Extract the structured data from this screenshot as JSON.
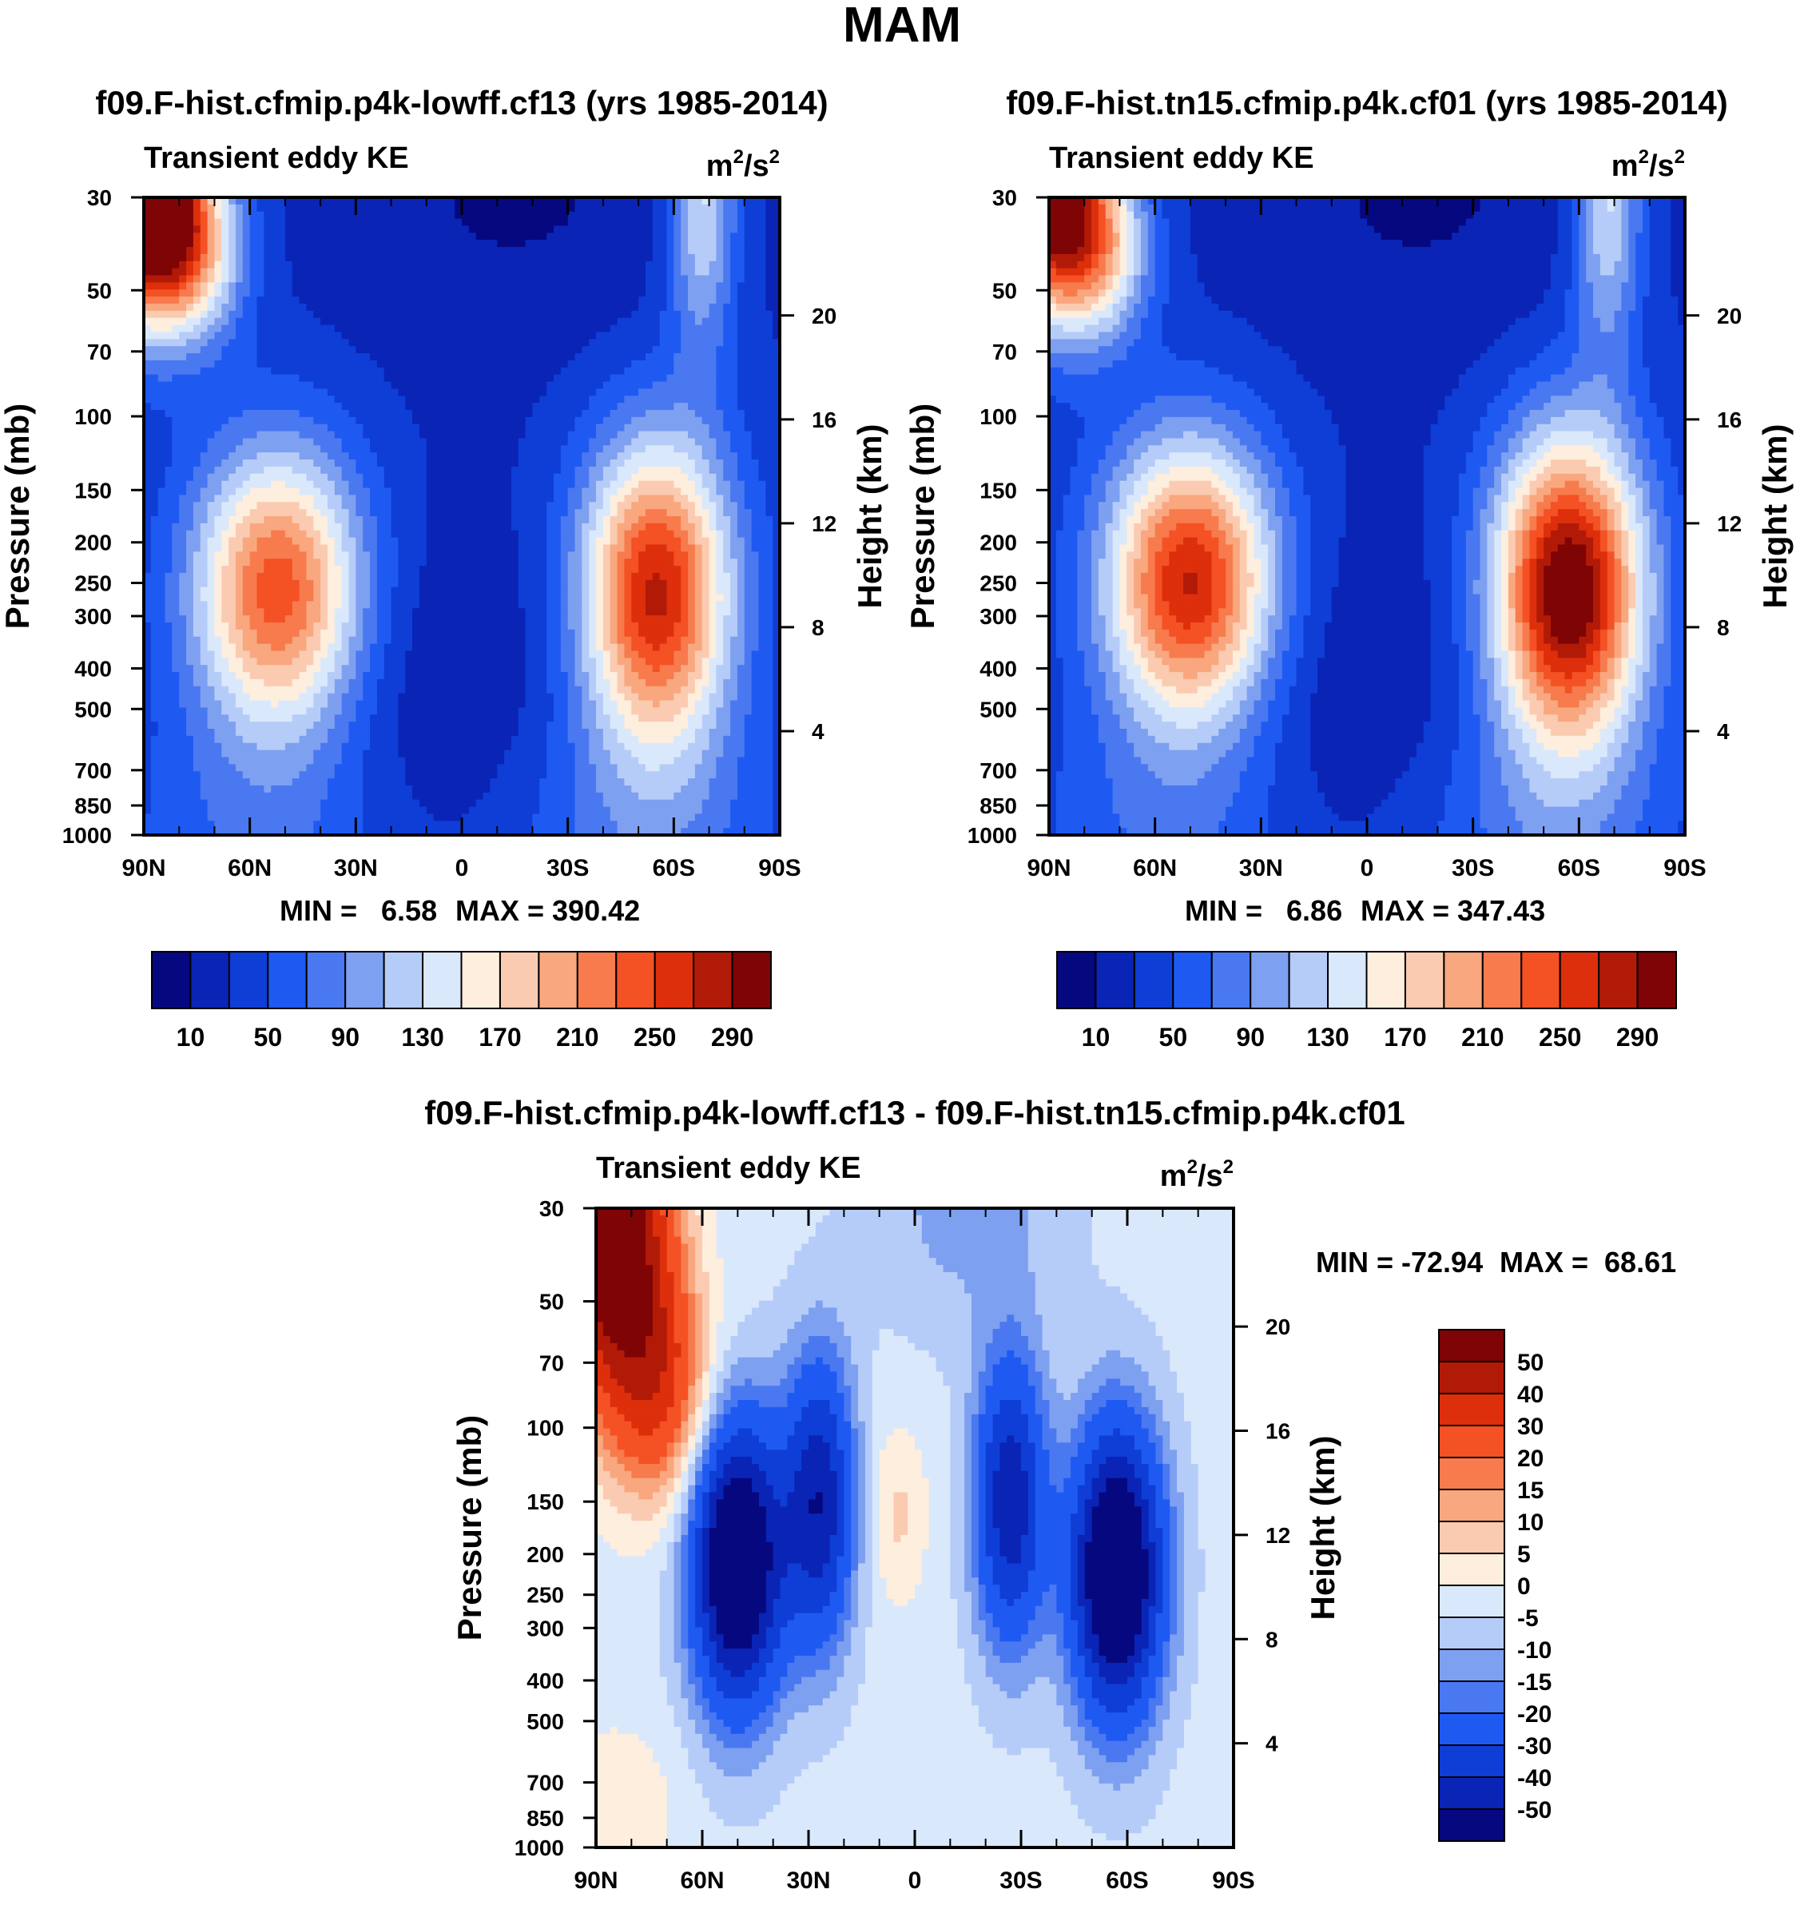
{
  "figure": {
    "season": "MAM"
  },
  "colors": {
    "abs_palette": [
      "#06087f",
      "#0a24b6",
      "#0e3ed6",
      "#1e5af2",
      "#4a78f0",
      "#7ea0f0",
      "#b6ccf8",
      "#dae8fc",
      "#fdeede",
      "#fbcbb1",
      "#f9a77f",
      "#f77b4d",
      "#f45124",
      "#dd2f0b",
      "#b21a08",
      "#7f0406"
    ],
    "diff_palette": [
      "#06087f",
      "#0a24b6",
      "#0e3ed6",
      "#1e5af2",
      "#4a78f0",
      "#7ea0f0",
      "#b6ccf8",
      "#dae8fc",
      "#fdeede",
      "#fbcbb1",
      "#f9a77f",
      "#f77b4d",
      "#f45124",
      "#dd2f0b",
      "#b21a08",
      "#7f0406"
    ]
  },
  "chart_data": [
    {
      "id": "panel1",
      "type": "heatmap",
      "title": "f09.F-hist.cfmip.p4k-lowff.cf13 (yrs 1985-2014)",
      "left_label": "Transient eddy KE",
      "units": {
        "base": "m",
        "exp1": "2",
        "slash": "/s",
        "exp2": "2"
      },
      "ylabel": "Pressure (mb)",
      "y2label": "Height (km)",
      "x_ticks": [
        "90N",
        "60N",
        "30N",
        "0",
        "30S",
        "60S",
        "90S"
      ],
      "x_tick_values": [
        90,
        60,
        30,
        0,
        -30,
        -60,
        -90
      ],
      "xlim": [
        90,
        -90
      ],
      "y_scale": "log",
      "ylim": [
        1000,
        30
      ],
      "y_ticks": [
        30,
        50,
        70,
        100,
        150,
        200,
        250,
        300,
        400,
        500,
        700,
        850,
        1000
      ],
      "y2_ticks": [
        20,
        16,
        12,
        8,
        4
      ],
      "min_label": "MIN =   6.58",
      "max_label": "MAX = 390.42",
      "min": 6.58,
      "max": 390.42,
      "colorbar_labels": [
        "10",
        "50",
        "90",
        "130",
        "170",
        "210",
        "250",
        "290"
      ],
      "levels": [
        10,
        30,
        50,
        70,
        90,
        110,
        130,
        150,
        170,
        190,
        210,
        230,
        250,
        270,
        290
      ],
      "features": [
        {
          "lat": 52,
          "p": 260,
          "peak": 245
        },
        {
          "lat": -55,
          "p": 265,
          "peak": 275
        },
        {
          "lat": 88,
          "p": 30,
          "peak": 380
        }
      ]
    },
    {
      "id": "panel2",
      "type": "heatmap",
      "title": "f09.F-hist.tn15.cfmip.p4k.cf01 (yrs 1985-2014)",
      "left_label": "Transient eddy KE",
      "units": {
        "base": "m",
        "exp1": "2",
        "slash": "/s",
        "exp2": "2"
      },
      "ylabel": "Pressure (mb)",
      "y2label": "Height (km)",
      "x_ticks": [
        "90N",
        "60N",
        "30N",
        "0",
        "30S",
        "60S",
        "90S"
      ],
      "x_tick_values": [
        90,
        60,
        30,
        0,
        -30,
        -60,
        -90
      ],
      "xlim": [
        90,
        -90
      ],
      "y_scale": "log",
      "ylim": [
        1000,
        30
      ],
      "y_ticks": [
        30,
        50,
        70,
        100,
        150,
        200,
        250,
        300,
        400,
        500,
        700,
        850,
        1000
      ],
      "y2_ticks": [
        20,
        16,
        12,
        8,
        4
      ],
      "min_label": "MIN =   6.86",
      "max_label": "MAX = 347.43",
      "min": 6.86,
      "max": 347.43,
      "colorbar_labels": [
        "10",
        "50",
        "90",
        "130",
        "170",
        "210",
        "250",
        "290"
      ],
      "levels": [
        10,
        30,
        50,
        70,
        90,
        110,
        130,
        150,
        170,
        190,
        210,
        230,
        250,
        270,
        290
      ],
      "features": [
        {
          "lat": 50,
          "p": 250,
          "peak": 275
        },
        {
          "lat": -57,
          "p": 260,
          "peak": 320
        },
        {
          "lat": 88,
          "p": 30,
          "peak": 300
        }
      ]
    },
    {
      "id": "panel3",
      "type": "heatmap",
      "title": "f09.F-hist.cfmip.p4k-lowff.cf13 - f09.F-hist.tn15.cfmip.p4k.cf01",
      "left_label": "Transient eddy KE",
      "units": {
        "base": "m",
        "exp1": "2",
        "slash": "/s",
        "exp2": "2"
      },
      "ylabel": "Pressure (mb)",
      "y2label": "Height (km)",
      "x_ticks": [
        "90N",
        "60N",
        "30N",
        "0",
        "30S",
        "60S",
        "90S"
      ],
      "x_tick_values": [
        90,
        60,
        30,
        0,
        -30,
        -60,
        -90
      ],
      "xlim": [
        90,
        -90
      ],
      "y_scale": "log",
      "ylim": [
        1000,
        30
      ],
      "y_ticks": [
        30,
        50,
        70,
        100,
        150,
        200,
        250,
        300,
        400,
        500,
        700,
        850,
        1000
      ],
      "y2_ticks": [
        20,
        16,
        12,
        8,
        4
      ],
      "min_label": "MIN = -72.94",
      "max_label": "MAX =  68.61",
      "min": -72.94,
      "max": 68.61,
      "colorbar_labels": [
        "50",
        "40",
        "30",
        "20",
        "15",
        "10",
        "5",
        "0",
        "-5",
        "-10",
        "-15",
        "-20",
        "-30",
        "-40",
        "-50"
      ],
      "levels": [
        -50,
        -40,
        -30,
        -20,
        -15,
        -10,
        -5,
        0,
        5,
        10,
        15,
        20,
        30,
        40,
        50
      ],
      "features": [
        {
          "lat": 50,
          "p": 210,
          "peak": -70
        },
        {
          "lat": 27,
          "p": 150,
          "peak": -45
        },
        {
          "lat": -27,
          "p": 150,
          "peak": -45
        },
        {
          "lat": -57,
          "p": 220,
          "peak": -72
        },
        {
          "lat": 85,
          "p": 35,
          "peak": 68
        }
      ]
    }
  ]
}
